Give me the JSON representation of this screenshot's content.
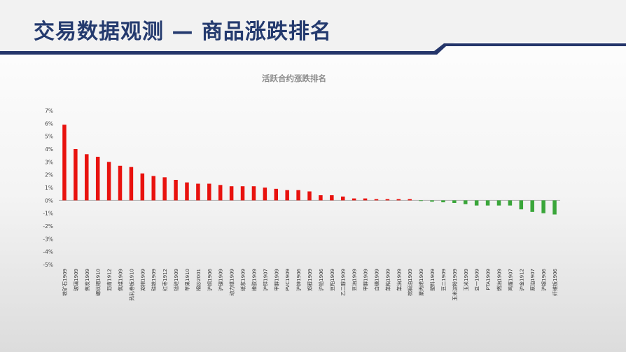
{
  "page": {
    "title": "交易数据观测 — 商品涨跌排名"
  },
  "colors": {
    "title": "#243a6e",
    "header_stripe": "#24356a",
    "positive_bar": "#e8120e",
    "negative_bar": "#3aa63a"
  },
  "chart_data": {
    "type": "bar",
    "title": "活跃合约涨跌排名",
    "xlabel": "",
    "ylabel": "",
    "ylim": [
      -0.05,
      0.07
    ],
    "yticks": [
      "7%",
      "6%",
      "5%",
      "4%",
      "3%",
      "2%",
      "1%",
      "0%",
      "-1%",
      "-2%",
      "-3%",
      "-4%",
      "-5%"
    ],
    "ytick_values": [
      0.07,
      0.06,
      0.05,
      0.04,
      0.03,
      0.02,
      0.01,
      0,
      -0.01,
      -0.02,
      -0.03,
      -0.04,
      -0.05
    ],
    "grid": false,
    "legend": "none",
    "categories": [
      "铁矿石1909",
      "玻璃1909",
      "焦炭1909",
      "螺纹钢1910",
      "沥青1912",
      "焦煤1909",
      "热轧卷板1910",
      "郑棉1909",
      "硅铁1909",
      "红枣1912",
      "锰硅1909",
      "苹果1910",
      "棉纱2001",
      "沪铜1906",
      "沪镍1909",
      "动力煤1909",
      "纸浆1909",
      "橡胶1909",
      "沪锌1907",
      "甲醇1909",
      "PVC1909",
      "沪锌1906",
      "郑醇1909",
      "沪铅1906",
      "豆粕1909",
      "乙二醇1909",
      "豆油1909",
      "甲醇1909",
      "白糖1909",
      "菜粕1909",
      "菜油1909",
      "棕榈油1909",
      "聚丙烯1909",
      "塑料1909",
      "豆二1909",
      "玉米淀粉1909",
      "玉米1909",
      "豆一1909",
      "PTA1909",
      "燃油1909",
      "鸡蛋1907",
      "沪金1912",
      "原油1907",
      "沪银1906",
      "纤维板1906"
    ],
    "values": [
      0.059,
      0.04,
      0.036,
      0.034,
      0.03,
      0.027,
      0.026,
      0.021,
      0.019,
      0.018,
      0.016,
      0.014,
      0.013,
      0.013,
      0.012,
      0.011,
      0.011,
      0.011,
      0.01,
      0.009,
      0.008,
      0.008,
      0.007,
      0.004,
      0.004,
      0.003,
      0.0015,
      0.0015,
      0.001,
      0.001,
      0.001,
      0.001,
      -0.0005,
      -0.001,
      -0.0015,
      -0.002,
      -0.003,
      -0.004,
      -0.004,
      -0.004,
      -0.004,
      -0.007,
      -0.009,
      -0.01,
      -0.011
    ]
  }
}
